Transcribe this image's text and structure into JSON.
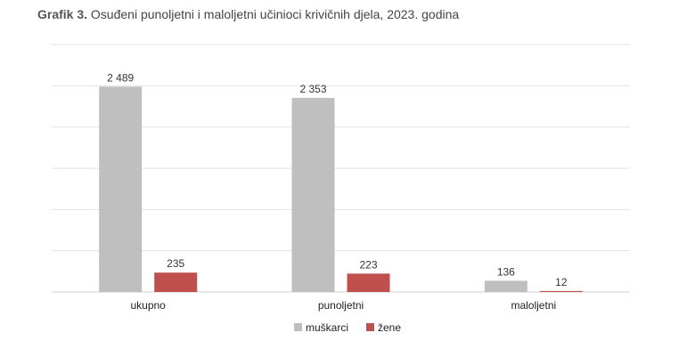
{
  "figure": {
    "label": "Grafik 3.",
    "caption": "Osuđeni punoljetni i maloljetni učinioci krivičnih djela, 2023. godina"
  },
  "chart_data": {
    "type": "bar",
    "title": "Osuđeni punoljetni i maloljetni učinioci krivičnih djela, 2023. godina",
    "categories": [
      "ukupno",
      "punoljetni",
      "maloljetni"
    ],
    "series": [
      {
        "name": "muškarci",
        "values": [
          2489,
          2353,
          136
        ],
        "labels": [
          "2 489",
          "2 353",
          "136"
        ],
        "color": "#bfbfbf"
      },
      {
        "name": "žene",
        "values": [
          235,
          223,
          12
        ],
        "labels": [
          "235",
          "223",
          "12"
        ],
        "color": "#c0504d"
      }
    ],
    "xlabel": "",
    "ylabel": "",
    "ylim": [
      0,
      3000
    ],
    "y_axis_labels_shown": false,
    "grid": true,
    "legend": "bottom-center"
  }
}
